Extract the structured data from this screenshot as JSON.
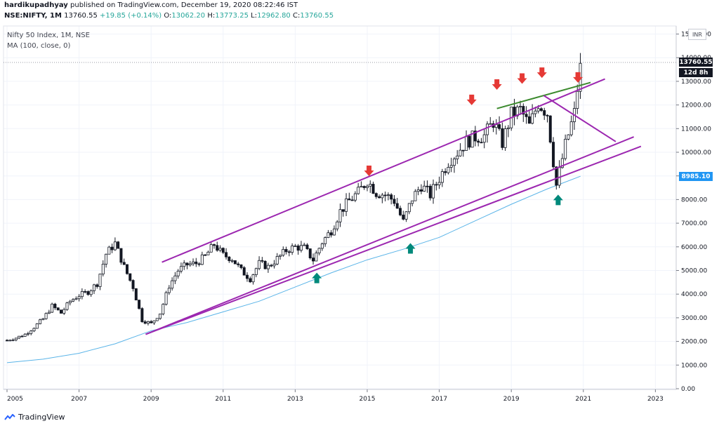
{
  "header": {
    "author": "hardikupadhyay",
    "publish_text": "published on TradingView.com, December 19, 2020 08:22:46 IST",
    "symbol_line": "NSE:NIFTY, 1M",
    "last": "13760.55",
    "change": "+19.85 (+0.14%)",
    "o_label": "O:",
    "o": "13062.20",
    "h_label": "H:",
    "h": "13773.25",
    "l_label": "L:",
    "l": "12962.80",
    "c_label": "C:",
    "c": "13760.55"
  },
  "legend": {
    "title": "Nifty 50 Index, 1M, NSE",
    "indicator": "MA (100, close, 0)"
  },
  "currency": "INR",
  "price_tags": {
    "last": "13760.55",
    "countdown": "12d 8h",
    "ma": "8985.10"
  },
  "brand": "TradingView",
  "colors": {
    "up": "#131722",
    "down": "#131722",
    "ma_line": "#5ab4e8",
    "channel": "#9c27b0",
    "trendline": "#3c8a2e",
    "sell_arrow": "#e53935",
    "buy_arrow": "#00897b",
    "last_price_tag": "#131722",
    "ma_tag": "#2196f3"
  },
  "chart_data": {
    "type": "candlestick",
    "x_ticks": [
      "2005",
      "2007",
      "2009",
      "2011",
      "2013",
      "2015",
      "2017",
      "2019",
      "2021",
      "2023"
    ],
    "y_ticks": [
      "15000.00",
      "14000.00",
      "13000.00",
      "12000.00",
      "11000.00",
      "10000.00",
      "9000.00",
      "8000.00",
      "7000.00",
      "6000.00",
      "5000.00",
      "4000.00",
      "3000.00",
      "2000.00",
      "1000.00",
      "0.00"
    ],
    "ylim": [
      0,
      15000
    ],
    "xlim": [
      2005.0,
      2025.5
    ],
    "grid": true,
    "closes": [
      [
        2005.0,
        2050
      ],
      [
        2005.25,
        2150
      ],
      [
        2005.5,
        2300
      ],
      [
        2005.75,
        2600
      ],
      [
        2006.0,
        2950
      ],
      [
        2006.25,
        3500
      ],
      [
        2006.5,
        3200
      ],
      [
        2006.75,
        3700
      ],
      [
        2007.0,
        3950
      ],
      [
        2007.25,
        4100
      ],
      [
        2007.5,
        4450
      ],
      [
        2007.75,
        5700
      ],
      [
        2008.0,
        6150
      ],
      [
        2008.25,
        5150
      ],
      [
        2008.5,
        4300
      ],
      [
        2008.75,
        2900
      ],
      [
        2009.0,
        2750
      ],
      [
        2009.25,
        3200
      ],
      [
        2009.5,
        4350
      ],
      [
        2009.75,
        5000
      ],
      [
        2010.0,
        5250
      ],
      [
        2010.25,
        5300
      ],
      [
        2010.5,
        5600
      ],
      [
        2010.75,
        6100
      ],
      [
        2011.0,
        5650
      ],
      [
        2011.25,
        5500
      ],
      [
        2011.5,
        5000
      ],
      [
        2011.75,
        4650
      ],
      [
        2012.0,
        5300
      ],
      [
        2012.25,
        5150
      ],
      [
        2012.5,
        5500
      ],
      [
        2012.75,
        5850
      ],
      [
        2013.0,
        6000
      ],
      [
        2013.25,
        5950
      ],
      [
        2013.5,
        5450
      ],
      [
        2013.75,
        6200
      ],
      [
        2014.0,
        6700
      ],
      [
        2014.25,
        7500
      ],
      [
        2014.5,
        7950
      ],
      [
        2014.75,
        8300
      ],
      [
        2015.0,
        8800
      ],
      [
        2015.25,
        8300
      ],
      [
        2015.5,
        8200
      ],
      [
        2015.75,
        7950
      ],
      [
        2016.0,
        7050
      ],
      [
        2016.25,
        8050
      ],
      [
        2016.5,
        8600
      ],
      [
        2016.75,
        8200
      ],
      [
        2017.0,
        8900
      ],
      [
        2017.25,
        9600
      ],
      [
        2017.5,
        10000
      ],
      [
        2017.75,
        10450
      ],
      [
        2018.0,
        10650
      ],
      [
        2018.25,
        10700
      ],
      [
        2018.5,
        11300
      ],
      [
        2018.75,
        10400
      ],
      [
        2019.0,
        11600
      ],
      [
        2019.25,
        11800
      ],
      [
        2019.5,
        11100
      ],
      [
        2019.75,
        12100
      ],
      [
        2020.0,
        11650
      ],
      [
        2020.25,
        8600
      ],
      [
        2020.5,
        10300
      ],
      [
        2020.75,
        11650
      ],
      [
        2020.92,
        13760.55
      ]
    ],
    "ma": [
      [
        2005.0,
        1100
      ],
      [
        2006.0,
        1250
      ],
      [
        2007.0,
        1500
      ],
      [
        2008.0,
        1900
      ],
      [
        2009.0,
        2450
      ],
      [
        2010.0,
        2800
      ],
      [
        2011.0,
        3250
      ],
      [
        2012.0,
        3700
      ],
      [
        2013.0,
        4300
      ],
      [
        2014.0,
        4900
      ],
      [
        2015.0,
        5450
      ],
      [
        2016.0,
        5900
      ],
      [
        2017.0,
        6400
      ],
      [
        2018.0,
        7100
      ],
      [
        2019.0,
        7800
      ],
      [
        2020.0,
        8450
      ],
      [
        2020.92,
        8985.1
      ]
    ],
    "lines": [
      {
        "name": "channel-upper",
        "p1": [
          2009.3,
          5350
        ],
        "p2": [
          2021.6,
          13100
        ]
      },
      {
        "name": "channel-lower-1",
        "p1": [
          2008.85,
          2300
        ],
        "p2": [
          2022.4,
          10650
        ]
      },
      {
        "name": "channel-lower-2",
        "p1": [
          2008.85,
          2300
        ],
        "p2": [
          2022.6,
          10250
        ]
      },
      {
        "name": "trendline-top",
        "p1": [
          2018.6,
          11850
        ],
        "p2": [
          2021.2,
          12950
        ]
      },
      {
        "name": "wedge-down",
        "p1": [
          2019.9,
          12400
        ],
        "p2": [
          2021.9,
          10450
        ]
      }
    ],
    "sell_arrows": [
      [
        2015.05,
        9200
      ],
      [
        2017.9,
        12200
      ],
      [
        2018.6,
        12850
      ],
      [
        2019.3,
        13100
      ],
      [
        2019.85,
        13350
      ],
      [
        2020.85,
        13150
      ]
    ],
    "buy_arrows": [
      [
        2013.6,
        4700
      ],
      [
        2016.2,
        5950
      ],
      [
        2020.3,
        8000
      ]
    ]
  }
}
